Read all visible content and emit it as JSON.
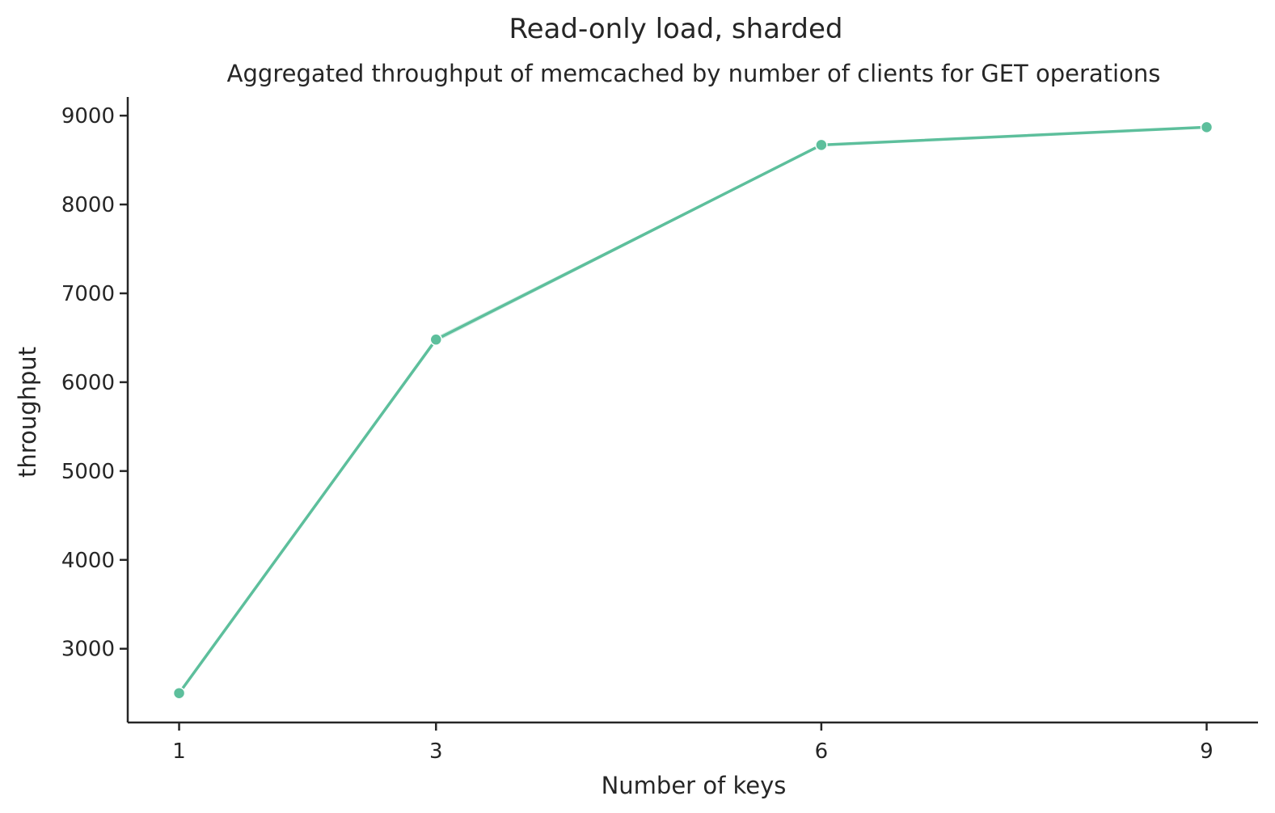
{
  "chart_data": {
    "type": "line",
    "title": "Read-only load, sharded",
    "subtitle": "Aggregated throughput of memcached by number of clients for GET operations",
    "xlabel": "Number of keys",
    "ylabel": "throughput",
    "x": [
      1,
      3,
      6,
      9
    ],
    "x_tick_labels": [
      "1",
      "3",
      "6",
      "9"
    ],
    "y_ticks": [
      3000,
      4000,
      5000,
      6000,
      7000,
      8000,
      9000
    ],
    "y_tick_labels": [
      "3000",
      "4000",
      "5000",
      "6000",
      "7000",
      "8000",
      "9000"
    ],
    "xlim": [
      0.6,
      9.4
    ],
    "ylim": [
      2170,
      9210
    ],
    "grid": false,
    "series": [
      {
        "values": [
          2500,
          6480,
          8670,
          8870
        ],
        "color": "#5dbf9c"
      }
    ],
    "confidence_band": {
      "lower": [
        2490,
        6450,
        8660,
        8860
      ],
      "upper": [
        2510,
        6510,
        8680,
        8880
      ]
    }
  }
}
